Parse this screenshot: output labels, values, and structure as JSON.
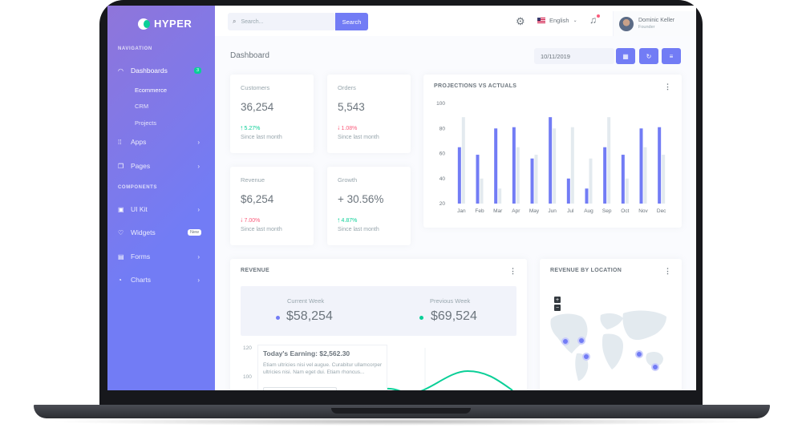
{
  "app": {
    "logo": "HYPER"
  },
  "sidebar": {
    "nav_title": "NAVIGATION",
    "components_title": "COMPONENTS",
    "dashboards": {
      "label": "Dashboards",
      "badge": "3"
    },
    "subitems": [
      "Ecommerce",
      "CRM",
      "Projects"
    ],
    "apps": "Apps",
    "pages": "Pages",
    "uikit": "UI Kit",
    "widgets": {
      "label": "Widgets",
      "badge": "New"
    },
    "forms": "Forms",
    "charts": "Charts"
  },
  "topbar": {
    "search_placeholder": "Search...",
    "search_button": "Search",
    "language": "English",
    "user_name": "Dominic Keller",
    "user_role": "Founder"
  },
  "page": {
    "title": "Dashboard",
    "date": "10/11/2019"
  },
  "stats": [
    {
      "title": "Customers",
      "value": "36,254",
      "change": "5.27%",
      "direction": "up",
      "since": "Since last month"
    },
    {
      "title": "Orders",
      "value": "5,543",
      "change": "1.08%",
      "direction": "down",
      "since": "Since last month"
    },
    {
      "title": "Revenue",
      "value": "$6,254",
      "change": "7.00%",
      "direction": "down",
      "since": "Since last month"
    },
    {
      "title": "Growth",
      "value": "+ 30.56%",
      "change": "4.87%",
      "direction": "up",
      "since": "Since last month"
    }
  ],
  "projections": {
    "title": "PROJECTIONS VS ACTUALS"
  },
  "revenue": {
    "title": "REVENUE",
    "current_label": "Current Week",
    "current_value": "$58,254",
    "previous_label": "Previous Week",
    "previous_value": "$69,524",
    "y_ticks": [
      "120",
      "100"
    ],
    "earning_title": "Today's Earning: $2,562.30",
    "earning_text": "Etiam ultricies nisi vel augue. Curabitur ullamcorper ultricies nisi. Nam eget dui. Etiam rhoncus..."
  },
  "location": {
    "title": "REVENUE BY LOCATION",
    "zoom_in": "+",
    "zoom_out": "−"
  },
  "colors": {
    "primary": "#727cf5",
    "success": "#0acf97",
    "danger": "#fa5c7c",
    "light_bar": "#e3eaef"
  },
  "chart_data": {
    "type": "bar",
    "title": "PROJECTIONS VS ACTUALS",
    "categories": [
      "Jan",
      "Feb",
      "Mar",
      "Apr",
      "May",
      "Jun",
      "Jul",
      "Aug",
      "Sep",
      "Oct",
      "Nov",
      "Dec"
    ],
    "series": [
      {
        "values": [
          65,
          59,
          80,
          81,
          56,
          89,
          40,
          32,
          65,
          59,
          80,
          81
        ]
      },
      {
        "values": [
          89,
          40,
          32,
          65,
          59,
          80,
          81,
          56,
          89,
          40,
          65,
          59
        ]
      }
    ],
    "y_ticks": [
      20,
      40,
      60,
      80,
      100
    ],
    "ylim": [
      20,
      100
    ]
  }
}
